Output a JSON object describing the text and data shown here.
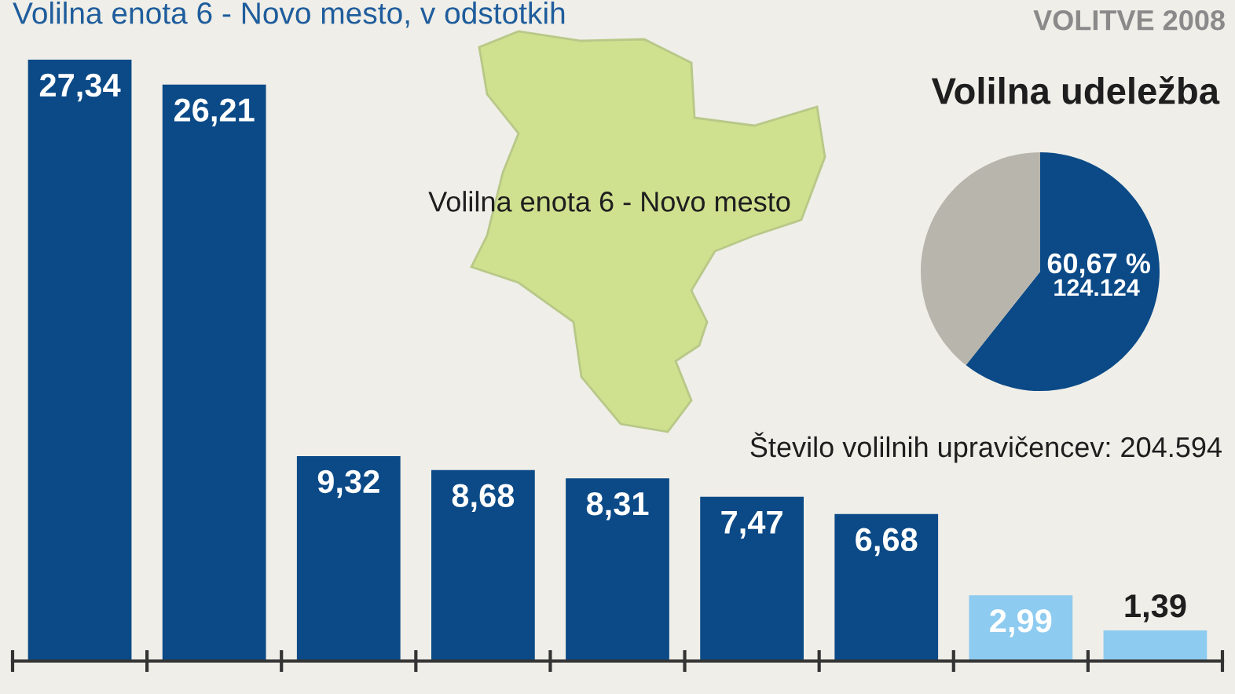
{
  "chart_data": [
    {
      "type": "bar",
      "title": "Volilna enota 6 - Novo mesto, v odstotkih",
      "categories": [
        null,
        null,
        null,
        null,
        null,
        null,
        null,
        null,
        null
      ],
      "values": [
        27.34,
        26.21,
        9.32,
        8.68,
        8.31,
        7.47,
        6.68,
        2.99,
        1.39
      ],
      "colors": [
        "#0b4a87",
        "#0b4a87",
        "#0b4a87",
        "#0b4a87",
        "#0b4a87",
        "#0b4a87",
        "#0b4a87",
        "#8ecbf0",
        "#8ecbf0"
      ],
      "value_labels": [
        "27,34",
        "26,21",
        "9,32",
        "8,68",
        "8,31",
        "7,47",
        "6,68",
        "2,99",
        "1,39"
      ],
      "annotations": [
        "Volilna enota 6 - Novo mesto",
        "VOLITVE 2008"
      ]
    },
    {
      "type": "pie",
      "title": "Volilna udeležba",
      "categories": [
        null,
        null
      ],
      "values": [
        60.67,
        39.33
      ],
      "colors": [
        "#0b4a87",
        "#b7b5ac"
      ],
      "value_labels": [
        "60,67 %",
        null
      ],
      "annotations": [
        "124.124",
        "Število volilnih upravičencev: 204.594"
      ]
    }
  ]
}
